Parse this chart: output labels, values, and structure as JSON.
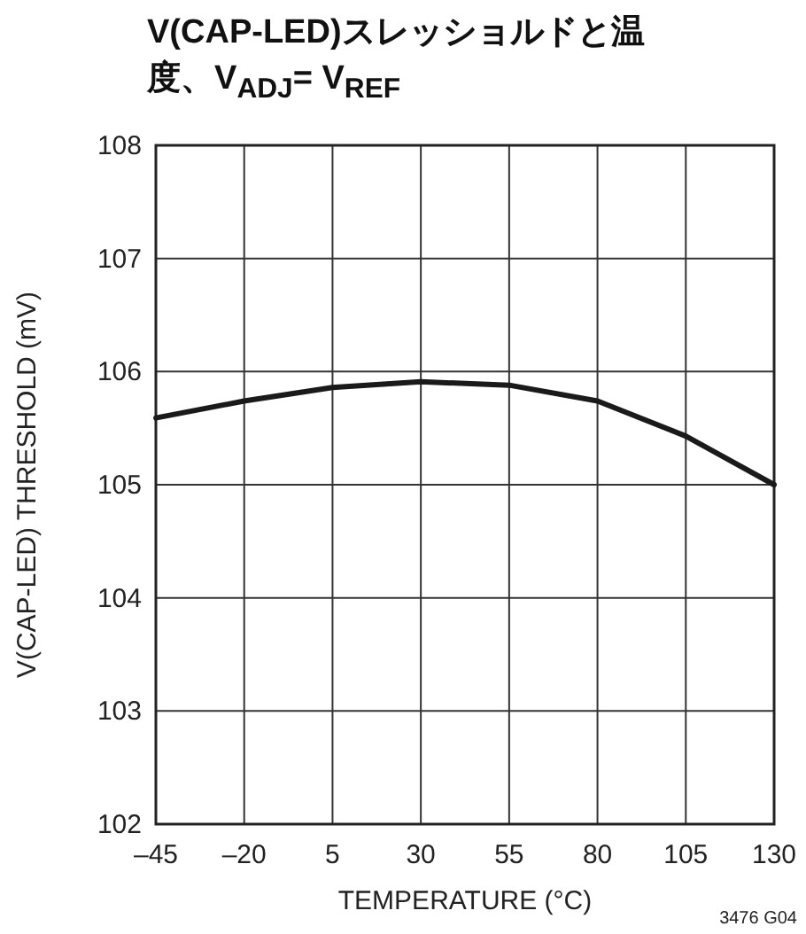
{
  "chart_data": {
    "type": "line",
    "title": "V(CAP-LED)スレッショルドと温度、V$_{ADJ}$= V$_{REF}$",
    "xlabel": "TEMPERATURE (°C)",
    "ylabel": "V(CAP-LED) THRESHOLD (mV)",
    "x": [
      -45,
      -20,
      5,
      30,
      55,
      80,
      105,
      130
    ],
    "series": [
      {
        "color": "#1a1a1a",
        "values": [
          105.59,
          105.74,
          105.86,
          105.91,
          105.88,
          105.74,
          105.43,
          105.0
        ]
      }
    ],
    "xlim": [
      -45,
      130
    ],
    "xticks": [
      {
        "value": -45,
        "label": "–45"
      },
      {
        "value": -20,
        "label": "–20"
      },
      5,
      30,
      55,
      80,
      105,
      130
    ],
    "ylim": [
      102,
      108
    ],
    "yticks": [
      102,
      103,
      104,
      105,
      106,
      107,
      108
    ],
    "grid": true,
    "marker": "none",
    "line_style": "solid",
    "annotations": [
      "3476 G04"
    ]
  }
}
